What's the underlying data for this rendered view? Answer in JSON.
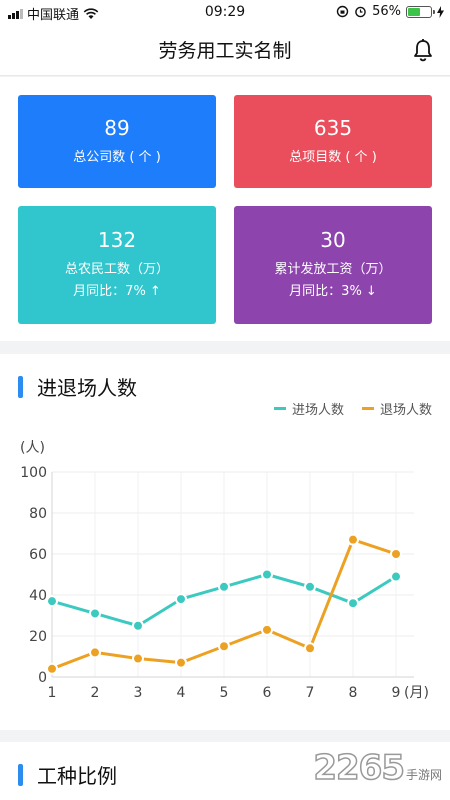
{
  "status_bar": {
    "carrier": "中国联通",
    "time": "09:29",
    "battery": "56%",
    "battery_level": 0.56
  },
  "nav": {
    "title": "劳务用工实名制",
    "bell_icon": "bell-icon"
  },
  "stats": {
    "companies": {
      "value": "89",
      "label": "总公司数 ( 个 )",
      "color": "#1e7dfa"
    },
    "projects": {
      "value": "635",
      "label": "总项目数 ( 个 )",
      "color": "#ea4e5c"
    },
    "workers": {
      "value": "132",
      "label": "总农民工数（万）",
      "mom": "月同比：7%  ↑",
      "color": "#31c6cd"
    },
    "wages": {
      "value": "30",
      "label": "累计发放工资（万）",
      "mom": "月同比：3%  ↓",
      "color": "#8e44ad"
    }
  },
  "chart_section": {
    "title": "进退场人数"
  },
  "second_section": {
    "title": "工种比例"
  },
  "watermark": {
    "brand": "2265",
    "sub": "手游网"
  },
  "chart_data": {
    "type": "line",
    "x": [
      1,
      2,
      3,
      4,
      5,
      6,
      7,
      8,
      9
    ],
    "x_tick_labels": [
      "1",
      "2",
      "3",
      "4",
      "5",
      "6",
      "7",
      "8",
      "9"
    ],
    "x_unit": "(月)",
    "y_unit": "(人)",
    "ylim": [
      0,
      100
    ],
    "y_ticks": [
      0,
      20,
      40,
      60,
      80,
      100
    ],
    "grid": true,
    "legend_position": "top-right",
    "series": [
      {
        "name": "进场人数",
        "color": "#3cc9c0",
        "values": [
          37,
          31,
          25,
          38,
          44,
          50,
          44,
          36,
          49
        ]
      },
      {
        "name": "退场人数",
        "color": "#eda123",
        "values": [
          4,
          12,
          9,
          7,
          15,
          23,
          14,
          67,
          60
        ]
      }
    ]
  }
}
